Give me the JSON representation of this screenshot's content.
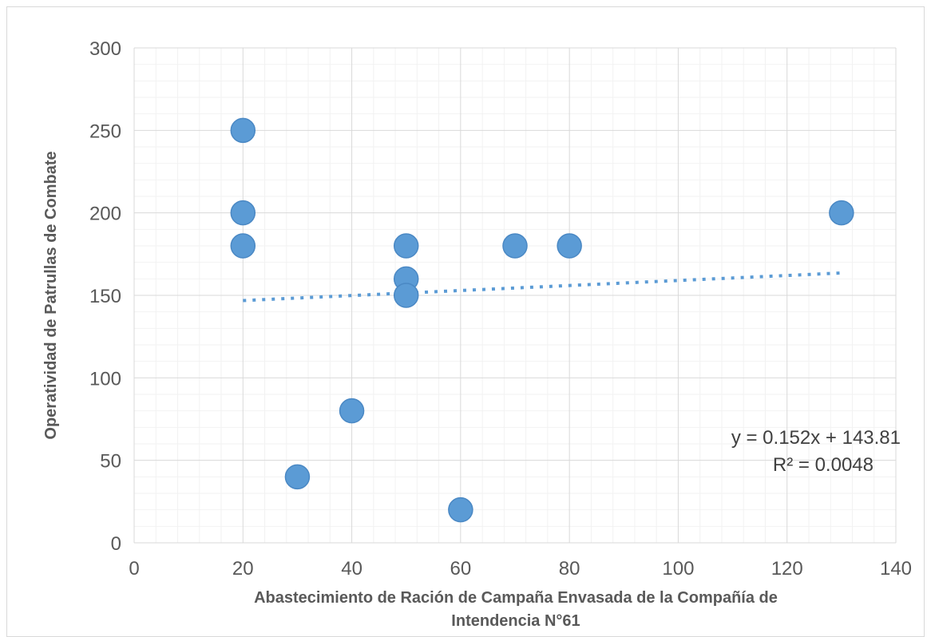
{
  "chart_data": {
    "type": "scatter",
    "title": "",
    "xlabel_lines": [
      "Abastecimiento de Ración de Campaña Envasada de la Compañía de",
      "Intendencia N°61"
    ],
    "ylabel": "Operatividad de Patrullas de Combate",
    "xlim": [
      0,
      140
    ],
    "ylim": [
      0,
      300
    ],
    "x_ticks": [
      "0",
      "20",
      "40",
      "60",
      "80",
      "100",
      "120",
      "140"
    ],
    "y_ticks": [
      "0",
      "50",
      "100",
      "150",
      "200",
      "250",
      "300"
    ],
    "grid": true,
    "marker_color": "#5b9bd5",
    "points": [
      {
        "x": 20,
        "y": 250
      },
      {
        "x": 20,
        "y": 200
      },
      {
        "x": 20,
        "y": 180
      },
      {
        "x": 30,
        "y": 40
      },
      {
        "x": 40,
        "y": 80
      },
      {
        "x": 50,
        "y": 180
      },
      {
        "x": 50,
        "y": 160
      },
      {
        "x": 50,
        "y": 150
      },
      {
        "x": 60,
        "y": 20
      },
      {
        "x": 70,
        "y": 180
      },
      {
        "x": 80,
        "y": 180
      },
      {
        "x": 130,
        "y": 200
      }
    ],
    "trendline": {
      "type": "linear",
      "slope": 0.152,
      "intercept": 143.81,
      "x_range": [
        20,
        130
      ],
      "style": "dotted",
      "color": "#5b9bd5"
    },
    "equation_label": "y = 0.152x + 143.81",
    "r2_label": "R² = 0.0048"
  }
}
